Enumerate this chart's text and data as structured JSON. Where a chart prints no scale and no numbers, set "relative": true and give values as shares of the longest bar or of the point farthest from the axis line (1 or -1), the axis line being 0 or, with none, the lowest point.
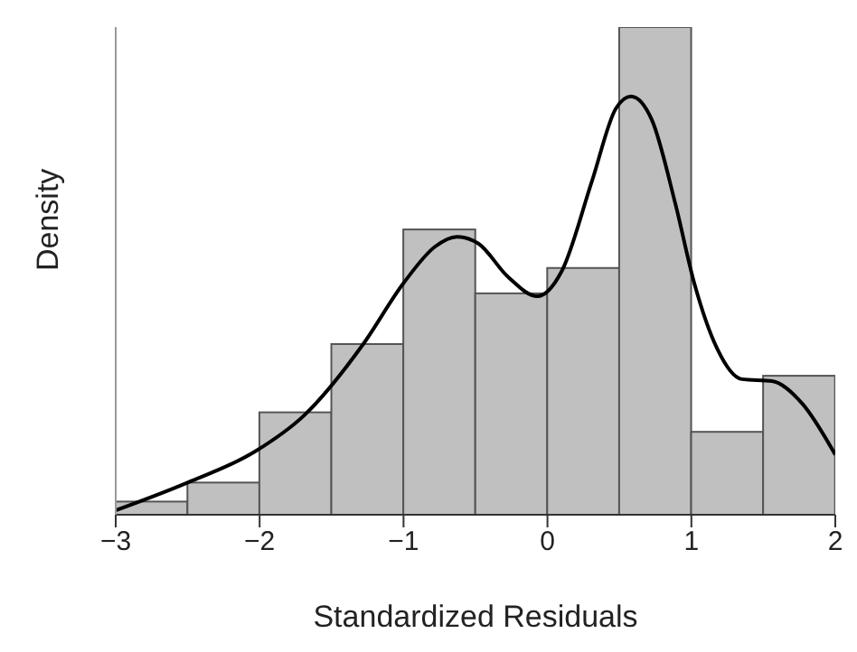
{
  "chart_data": {
    "type": "histogram",
    "xlabel": "Standardized Residuals",
    "ylabel": "Density",
    "relative": true,
    "bins": [
      -3,
      -2.5,
      -2,
      -1.5,
      -1,
      -0.5,
      0,
      0.5,
      1,
      1.5,
      2
    ],
    "values": [
      0.027,
      0.066,
      0.21,
      0.35,
      0.585,
      0.454,
      0.506,
      1,
      0.17,
      0.285
    ],
    "color": "#c0c0c0",
    "series": [
      {
        "type": "line",
        "color": "#000000",
        "x": [
          -3,
          -2.5,
          -2.03,
          -1.69,
          -1.28,
          -1,
          -0.78,
          -0.63,
          -0.48,
          -0.275,
          -0.07,
          0.1,
          0.31,
          0.475,
          0.58,
          0.725,
          0.89,
          1.02,
          1.18,
          1.35,
          1.56,
          1.77,
          2
        ],
        "values": [
          0.009,
          0.066,
          0.13,
          0.204,
          0.35,
          0.475,
          0.55,
          0.57,
          0.556,
          0.488,
          0.448,
          0.5,
          0.685,
          0.833,
          0.858,
          0.81,
          0.636,
          0.475,
          0.34,
          0.278,
          0.274,
          0.228,
          0.123
        ]
      }
    ],
    "xlim": [
      -3,
      2
    ],
    "xticks": [
      -3,
      -2,
      -1,
      0,
      1,
      2
    ],
    "grid": false,
    "marker": "none",
    "line_style": "solid"
  }
}
